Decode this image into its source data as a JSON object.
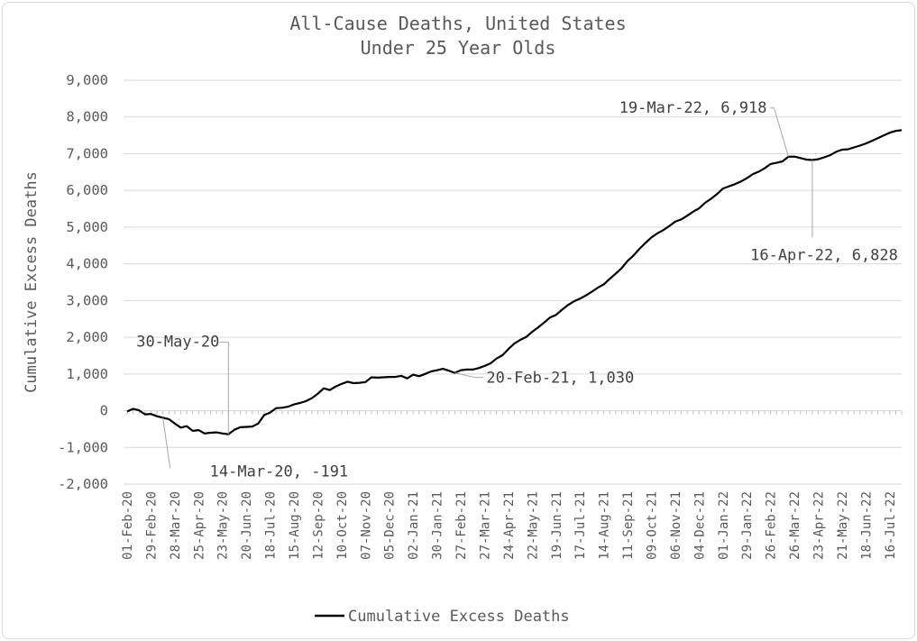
{
  "chart_data": {
    "type": "line",
    "title": "All-Cause Deaths, United States",
    "subtitle": "Under 25 Year Olds",
    "ylabel": "Cumulative Excess Deaths",
    "xlabel": "",
    "ylim": [
      -2000,
      9000
    ],
    "yticks": [
      "-2,000",
      "-1,000",
      "0",
      "1,000",
      "2,000",
      "3,000",
      "4,000",
      "5,000",
      "6,000",
      "7,000",
      "8,000",
      "9,000"
    ],
    "xticks": [
      "01-Feb-20",
      "29-Feb-20",
      "28-Mar-20",
      "25-Apr-20",
      "23-May-20",
      "20-Jun-20",
      "18-Jul-20",
      "15-Aug-20",
      "12-Sep-20",
      "10-Oct-20",
      "07-Nov-20",
      "05-Dec-20",
      "02-Jan-21",
      "30-Jan-21",
      "27-Feb-21",
      "27-Mar-21",
      "24-Apr-21",
      "22-May-21",
      "19-Jun-21",
      "17-Jul-21",
      "14-Aug-21",
      "11-Sep-21",
      "09-Oct-21",
      "06-Nov-21",
      "04-Dec-21",
      "01-Jan-22",
      "29-Jan-22",
      "26-Feb-22",
      "26-Mar-22",
      "23-Apr-22",
      "21-May-22",
      "18-Jun-22",
      "16-Jul-22"
    ],
    "grid": true,
    "legend_position": "bottom",
    "series": [
      {
        "name": "Cumulative Excess Deaths",
        "color": "#000000",
        "x": [
          "01-Feb-20",
          "08-Feb-20",
          "15-Feb-20",
          "22-Feb-20",
          "29-Feb-20",
          "07-Mar-20",
          "14-Mar-20",
          "21-Mar-20",
          "28-Mar-20",
          "04-Apr-20",
          "11-Apr-20",
          "18-Apr-20",
          "25-Apr-20",
          "02-May-20",
          "09-May-20",
          "16-May-20",
          "23-May-20",
          "30-May-20",
          "06-Jun-20",
          "13-Jun-20",
          "20-Jun-20",
          "27-Jun-20",
          "04-Jul-20",
          "11-Jul-20",
          "18-Jul-20",
          "25-Jul-20",
          "01-Aug-20",
          "08-Aug-20",
          "15-Aug-20",
          "22-Aug-20",
          "29-Aug-20",
          "05-Sep-20",
          "12-Sep-20",
          "19-Sep-20",
          "26-Sep-20",
          "03-Oct-20",
          "10-Oct-20",
          "17-Oct-20",
          "24-Oct-20",
          "31-Oct-20",
          "07-Nov-20",
          "14-Nov-20",
          "21-Nov-20",
          "28-Nov-20",
          "05-Dec-20",
          "12-Dec-20",
          "19-Dec-20",
          "26-Dec-20",
          "02-Jan-21",
          "09-Jan-21",
          "16-Jan-21",
          "23-Jan-21",
          "30-Jan-21",
          "06-Feb-21",
          "13-Feb-21",
          "20-Feb-21",
          "27-Feb-21",
          "06-Mar-21",
          "13-Mar-21",
          "20-Mar-21",
          "27-Mar-21",
          "03-Apr-21",
          "10-Apr-21",
          "17-Apr-21",
          "24-Apr-21",
          "01-May-21",
          "08-May-21",
          "15-May-21",
          "22-May-21",
          "29-May-21",
          "05-Jun-21",
          "12-Jun-21",
          "19-Jun-21",
          "26-Jun-21",
          "03-Jul-21",
          "10-Jul-21",
          "17-Jul-21",
          "24-Jul-21",
          "31-Jul-21",
          "07-Aug-21",
          "14-Aug-21",
          "21-Aug-21",
          "28-Aug-21",
          "04-Sep-21",
          "11-Sep-21",
          "18-Sep-21",
          "25-Sep-21",
          "02-Oct-21",
          "09-Oct-21",
          "16-Oct-21",
          "23-Oct-21",
          "30-Oct-21",
          "06-Nov-21",
          "13-Nov-21",
          "20-Nov-21",
          "27-Nov-21",
          "04-Dec-21",
          "11-Dec-21",
          "18-Dec-21",
          "25-Dec-21",
          "01-Jan-22",
          "08-Jan-22",
          "15-Jan-22",
          "22-Jan-22",
          "29-Jan-22",
          "05-Feb-22",
          "12-Feb-22",
          "19-Feb-22",
          "26-Feb-22",
          "05-Mar-22",
          "12-Mar-22",
          "19-Mar-22",
          "26-Mar-22",
          "02-Apr-22",
          "09-Apr-22",
          "16-Apr-22",
          "23-Apr-22",
          "30-Apr-22",
          "07-May-22",
          "14-May-22",
          "21-May-22",
          "28-May-22",
          "04-Jun-22",
          "11-Jun-22",
          "18-Jun-22",
          "25-Jun-22",
          "02-Jul-22",
          "09-Jul-22",
          "16-Jul-22",
          "23-Jul-22",
          "30-Jul-22"
        ],
        "values": [
          -20,
          50,
          10,
          -100,
          -90,
          -150,
          -191,
          -230,
          -350,
          -460,
          -420,
          -550,
          -530,
          -620,
          -600,
          -590,
          -620,
          -640,
          -520,
          -450,
          -440,
          -430,
          -350,
          -120,
          -50,
          70,
          80,
          110,
          170,
          210,
          260,
          340,
          460,
          610,
          560,
          660,
          730,
          790,
          750,
          760,
          780,
          910,
          900,
          910,
          920,
          920,
          950,
          880,
          980,
          940,
          1000,
          1070,
          1100,
          1140,
          1090,
          1030,
          1100,
          1120,
          1120,
          1160,
          1220,
          1290,
          1420,
          1510,
          1680,
          1830,
          1930,
          2010,
          2150,
          2270,
          2400,
          2540,
          2610,
          2750,
          2880,
          2980,
          3050,
          3140,
          3240,
          3350,
          3440,
          3590,
          3730,
          3880,
          4080,
          4230,
          4410,
          4570,
          4720,
          4830,
          4920,
          5030,
          5150,
          5210,
          5310,
          5420,
          5510,
          5660,
          5770,
          5900,
          6050,
          6110,
          6170,
          6240,
          6330,
          6440,
          6510,
          6600,
          6720,
          6750,
          6790,
          6918,
          6920,
          6880,
          6840,
          6828,
          6850,
          6900,
          6960,
          7050,
          7110,
          7120,
          7170,
          7220,
          7280,
          7350,
          7420,
          7500,
          7570,
          7620,
          7640
        ]
      }
    ],
    "annotations": [
      {
        "text": "14-Mar-20, -191",
        "x": "14-Mar-20",
        "y": -191
      },
      {
        "text": "30-May-20",
        "x": "30-May-20",
        "y": -640
      },
      {
        "text": "20-Feb-21, 1,030",
        "x": "20-Feb-21",
        "y": 1030
      },
      {
        "text": "19-Mar-22, 6,918",
        "x": "19-Mar-22",
        "y": 6918
      },
      {
        "text": "16-Apr-22, 6,828",
        "x": "16-Apr-22",
        "y": 6828
      }
    ]
  }
}
